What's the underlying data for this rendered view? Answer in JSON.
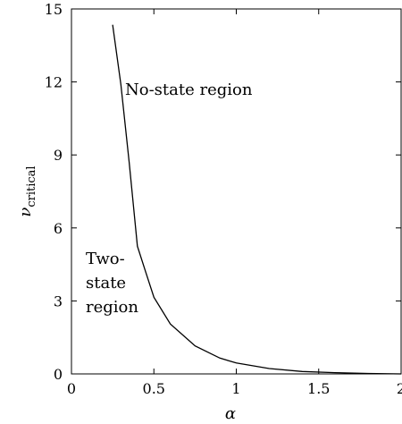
{
  "chart_data": {
    "type": "line",
    "title": "",
    "xlabel": "α",
    "ylabel_main": "ν",
    "ylabel_sub": "critical",
    "xlim": [
      0,
      2
    ],
    "ylim": [
      0,
      15
    ],
    "x_ticks": [
      0,
      0.5,
      1,
      1.5,
      2
    ],
    "x_tick_labels": [
      "0",
      "0.5",
      "1",
      "1.5",
      "2"
    ],
    "y_ticks": [
      0,
      3,
      6,
      9,
      12,
      15
    ],
    "y_tick_labels": [
      "0",
      "3",
      "6",
      "9",
      "12",
      "15"
    ],
    "grid": false,
    "series": [
      {
        "x": [
          0.25,
          0.3,
          0.35,
          0.4,
          0.45,
          0.5,
          0.6,
          0.75,
          0.9,
          1.0,
          1.2,
          1.4,
          1.6,
          1.8,
          2.0
        ],
        "y": [
          14.35,
          11.9,
          8.7,
          5.25,
          4.2,
          3.15,
          2.05,
          1.15,
          0.65,
          0.45,
          0.22,
          0.1,
          0.05,
          0.02,
          0.0
        ]
      }
    ],
    "annotations": [
      {
        "lines": [
          "No-state region"
        ]
      },
      {
        "lines": [
          "Two-",
          "state",
          "region"
        ]
      }
    ]
  }
}
